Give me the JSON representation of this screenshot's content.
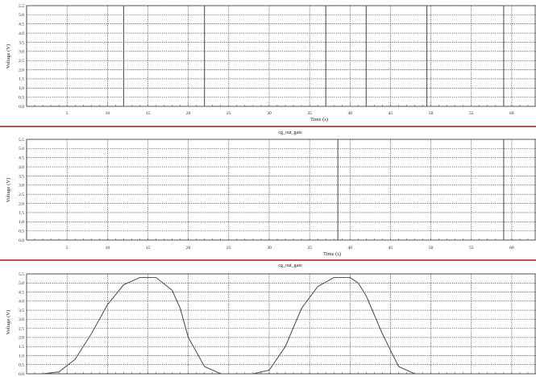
{
  "chart_data": [
    {
      "type": "line",
      "title": "",
      "xlabel": "Time (s)",
      "ylabel": "Voltage (V)",
      "xlim": [
        0,
        63
      ],
      "ylim": [
        0,
        5.5
      ],
      "x_ticks": [
        "5",
        "10",
        "15",
        "20",
        "25",
        "30",
        "35",
        "40",
        "45",
        "50",
        "55",
        "60"
      ],
      "y_ticks": [
        "0.0",
        "0.5",
        "1.0",
        "1.5",
        "2.0",
        "2.5",
        "3.0",
        "3.5",
        "4.0",
        "4.5",
        "5.0",
        "5.5"
      ],
      "grid": true,
      "series": [
        {
          "x": [
            0,
            0,
            12,
            12,
            22,
            22,
            37,
            37,
            42,
            42,
            49.5,
            49.5,
            59,
            59,
            63
          ],
          "y": [
            0,
            5.5,
            5.5,
            0,
            0,
            5.5,
            5.5,
            0,
            0,
            5.5,
            5.5,
            0,
            0,
            5.5,
            5.5
          ],
          "color": "#555555"
        }
      ]
    },
    {
      "type": "line",
      "title": "cg_out_gate",
      "xlabel": "Time (s)",
      "ylabel": "Voltage (V)",
      "xlim": [
        0,
        63
      ],
      "ylim": [
        0,
        5.5
      ],
      "x_ticks": [
        "5",
        "10",
        "15",
        "20",
        "25",
        "30",
        "35",
        "40",
        "45",
        "50",
        "55",
        "60"
      ],
      "y_ticks": [
        "0.0",
        "0.5",
        "1.0",
        "1.5",
        "2.0",
        "2.5",
        "3.0",
        "3.5",
        "4.0",
        "4.5",
        "5.0",
        "5.5"
      ],
      "grid": true,
      "series": [
        {
          "x": [
            0,
            0,
            38.5,
            38.5,
            59,
            59,
            63
          ],
          "y": [
            0,
            5.5,
            5.5,
            0,
            0,
            5.5,
            5.5
          ],
          "color": "#555555"
        }
      ]
    },
    {
      "type": "line",
      "title": "cg_out_gate",
      "xlabel": "",
      "ylabel": "Voltage (V)",
      "xlim": [
        0,
        63
      ],
      "ylim": [
        0,
        5.5
      ],
      "x_ticks": [],
      "y_ticks": [
        "0.0",
        "0.5",
        "1.0",
        "1.5",
        "2.0",
        "2.5",
        "3.0",
        "3.5",
        "4.0",
        "4.5",
        "5.0",
        "5.5"
      ],
      "grid": true,
      "series": [
        {
          "x": [
            0,
            2,
            4,
            6,
            8,
            10,
            12,
            14,
            16,
            18,
            19,
            20,
            22,
            24,
            26,
            28,
            30,
            32,
            34,
            36,
            38,
            40,
            41,
            42,
            44,
            46,
            48,
            50,
            52,
            56,
            63
          ],
          "y": [
            0,
            0,
            0.1,
            0.8,
            2.2,
            3.8,
            4.9,
            5.3,
            5.3,
            4.6,
            3.6,
            2.0,
            0.4,
            0,
            0,
            0,
            0.2,
            1.5,
            3.6,
            4.8,
            5.3,
            5.3,
            5.0,
            4.3,
            2.2,
            0.4,
            0,
            0,
            0,
            0,
            0
          ],
          "color": "#555555"
        }
      ]
    }
  ]
}
